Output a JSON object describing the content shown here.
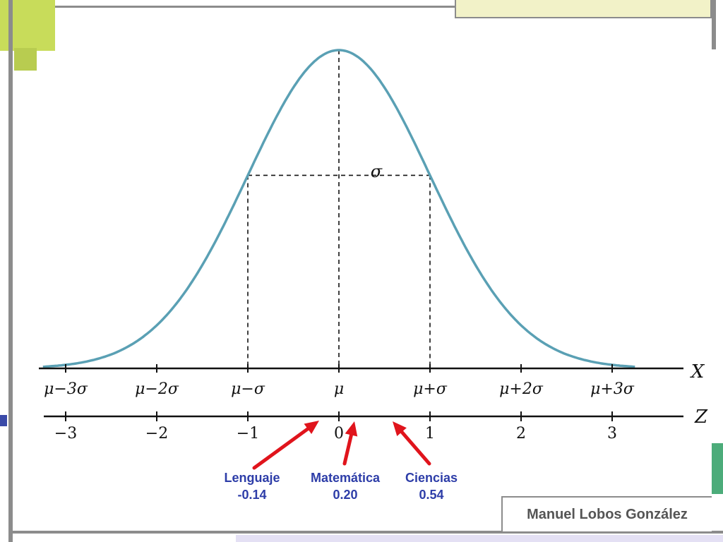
{
  "chart_data": {
    "type": "line",
    "title": "",
    "curve": "normal-distribution",
    "x_axis": {
      "label": "X",
      "ticks": [
        "μ−3σ",
        "μ−2σ",
        "μ−σ",
        "μ",
        "μ+σ",
        "μ+2σ",
        "μ+3σ"
      ]
    },
    "z_axis": {
      "label": "Z",
      "ticks": [
        "−3",
        "−2",
        "−1",
        "0",
        "1",
        "2",
        "3"
      ],
      "values": [
        -3,
        -2,
        -1,
        0,
        1,
        2,
        3
      ]
    },
    "sigma_label": "σ",
    "annotations": [
      {
        "name": "Lenguaje",
        "value": "-0.14",
        "z": -0.14
      },
      {
        "name": "Matemática",
        "value": "0.20",
        "z": 0.2
      },
      {
        "name": "Ciencias",
        "value": "0.54",
        "z": 0.54
      }
    ],
    "colors": {
      "curve": "#5aa0b4",
      "arrow": "#e0141c",
      "label": "#2d3da8"
    }
  },
  "footer": {
    "author": "Manuel Lobos González"
  }
}
